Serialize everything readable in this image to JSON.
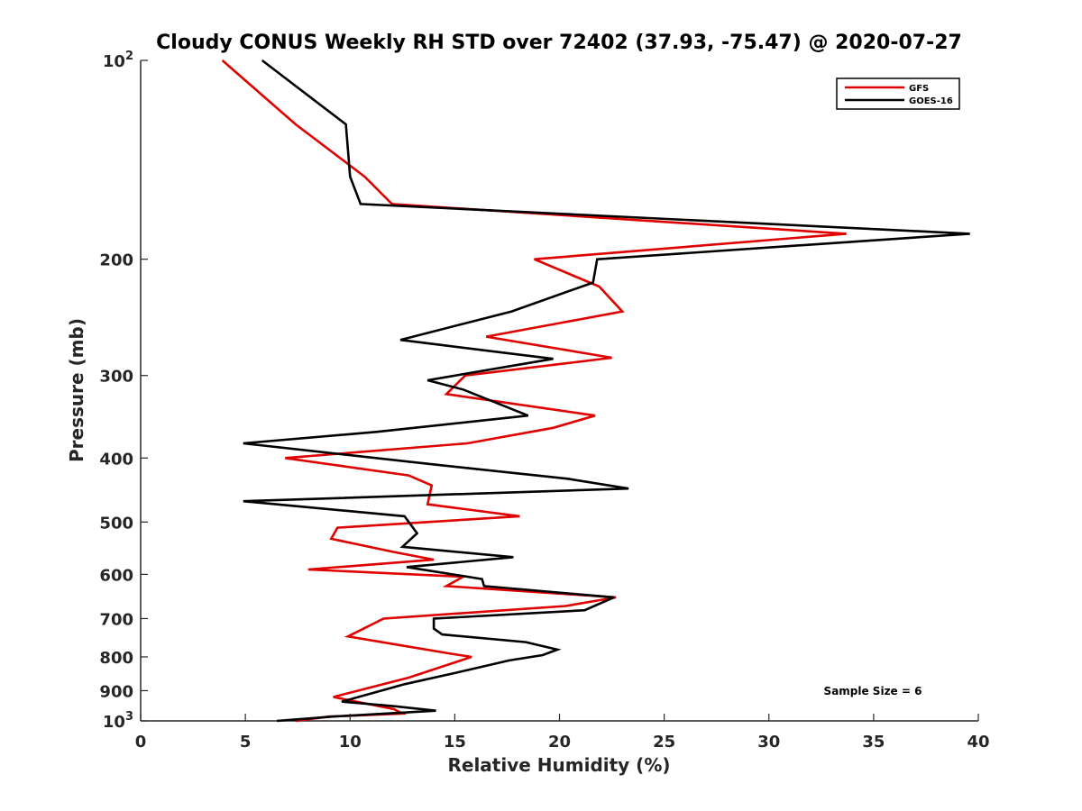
{
  "chart_data": {
    "type": "line",
    "title": "Cloudy CONUS Weekly RH STD over 72402 (37.93, -75.47) @ 2020-07-27",
    "xlabel": "Relative Humidity (%)",
    "ylabel": "Pressure (mb)",
    "xlim": [
      0,
      40
    ],
    "ylim": [
      1000,
      100
    ],
    "y_scale": "log",
    "y_reversed": true,
    "x_ticks": [
      "0",
      "5",
      "10",
      "15",
      "20",
      "25",
      "30",
      "35",
      "40"
    ],
    "y_ticks": [
      {
        "value": 100,
        "base": "10",
        "exp": "2"
      },
      {
        "value": 200,
        "label": "200"
      },
      {
        "value": 300,
        "label": "300"
      },
      {
        "value": 400,
        "label": "400"
      },
      {
        "value": 500,
        "label": "500"
      },
      {
        "value": 600,
        "label": "600"
      },
      {
        "value": 700,
        "label": "700"
      },
      {
        "value": 800,
        "label": "800"
      },
      {
        "value": 900,
        "label": "900"
      },
      {
        "value": 1000,
        "base": "10",
        "exp": "3"
      }
    ],
    "grid": false,
    "legend_position": "top-right",
    "annotation": "Sample Size = 6",
    "series": [
      {
        "name": "GFS",
        "color": "#e00000",
        "points": [
          [
            3.9,
            100
          ],
          [
            7.4,
            125
          ],
          [
            10.7,
            150
          ],
          [
            12.0,
            165
          ],
          [
            33.7,
            183
          ],
          [
            18.8,
            200
          ],
          [
            21.9,
            220
          ],
          [
            23.0,
            240
          ],
          [
            16.5,
            262
          ],
          [
            22.5,
            282
          ],
          [
            15.5,
            300
          ],
          [
            14.6,
            320
          ],
          [
            21.7,
            345
          ],
          [
            19.7,
            360
          ],
          [
            15.6,
            380
          ],
          [
            6.9,
            400
          ],
          [
            12.8,
            425
          ],
          [
            13.9,
            440
          ],
          [
            13.7,
            470
          ],
          [
            18.1,
            490
          ],
          [
            9.4,
            510
          ],
          [
            9.1,
            530
          ],
          [
            12.1,
            555
          ],
          [
            14.0,
            570
          ],
          [
            8.0,
            590
          ],
          [
            15.4,
            605
          ],
          [
            14.6,
            625
          ],
          [
            22.7,
            650
          ],
          [
            20.3,
            670
          ],
          [
            11.6,
            700
          ],
          [
            9.9,
            745
          ],
          [
            12.6,
            770
          ],
          [
            14.7,
            790
          ],
          [
            15.8,
            800
          ],
          [
            12.8,
            860
          ],
          [
            9.2,
            920
          ],
          [
            12.1,
            960
          ],
          [
            12.5,
            975
          ],
          [
            9.0,
            985
          ],
          [
            7.4,
            1000
          ]
        ]
      },
      {
        "name": "GOES-16",
        "color": "#000000",
        "points": [
          [
            5.8,
            100
          ],
          [
            9.8,
            125
          ],
          [
            10.0,
            150
          ],
          [
            10.5,
            165
          ],
          [
            39.6,
            183
          ],
          [
            21.8,
            200
          ],
          [
            21.6,
            217
          ],
          [
            17.7,
            240
          ],
          [
            12.4,
            265
          ],
          [
            19.7,
            283
          ],
          [
            13.7,
            305
          ],
          [
            15.4,
            315
          ],
          [
            18.5,
            345
          ],
          [
            11.3,
            365
          ],
          [
            4.9,
            380
          ],
          [
            14.3,
            410
          ],
          [
            20.4,
            430
          ],
          [
            23.3,
            445
          ],
          [
            4.9,
            465
          ],
          [
            12.6,
            490
          ],
          [
            13.2,
            520
          ],
          [
            12.5,
            545
          ],
          [
            17.8,
            565
          ],
          [
            12.7,
            585
          ],
          [
            16.3,
            610
          ],
          [
            16.4,
            625
          ],
          [
            22.6,
            650
          ],
          [
            21.2,
            680
          ],
          [
            14.0,
            700
          ],
          [
            14.0,
            725
          ],
          [
            14.4,
            740
          ],
          [
            18.4,
            760
          ],
          [
            19.9,
            780
          ],
          [
            19.2,
            795
          ],
          [
            17.6,
            810
          ],
          [
            15.1,
            845
          ],
          [
            12.6,
            880
          ],
          [
            9.6,
            935
          ],
          [
            12.1,
            950
          ],
          [
            14.1,
            965
          ],
          [
            9.2,
            985
          ],
          [
            6.5,
            1000
          ]
        ]
      }
    ]
  }
}
